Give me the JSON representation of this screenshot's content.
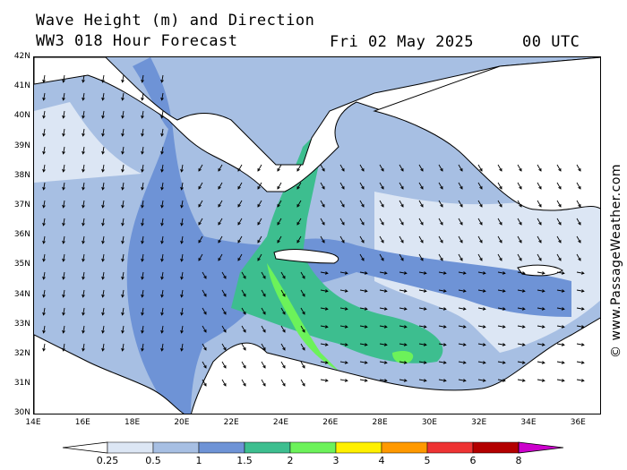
{
  "title": {
    "line1": "Wave Height (m) and Direction",
    "line2": "WW3 018 Hour Forecast",
    "date": "Fri 02 May 2025",
    "time": "00 UTC"
  },
  "credit": "© www.PassageWeather.com",
  "map": {
    "lat_ticks": [
      "42N",
      "41N",
      "40N",
      "39N",
      "38N",
      "37N",
      "36N",
      "35N",
      "34N",
      "33N",
      "32N",
      "31N",
      "30N"
    ],
    "lon_ticks": [
      "14E",
      "16E",
      "18E",
      "20E",
      "22E",
      "24E",
      "26E",
      "28E",
      "30E",
      "32E",
      "34E",
      "36E"
    ],
    "lat_range": [
      30,
      42
    ],
    "lon_range": [
      14,
      37
    ],
    "arrow_direction": "mostly south / south-west in the west, east in the south-east"
  },
  "legend": {
    "labels": [
      "0.25",
      "0.5",
      "1",
      "1.5",
      "2",
      "3",
      "4",
      "5",
      "6",
      "8"
    ],
    "colors": [
      "#ffffff",
      "#dce6f4",
      "#a7bfe3",
      "#6e93d6",
      "#3dbe8f",
      "#6cf25a",
      "#fff000",
      "#ff9900",
      "#ee3333",
      "#b30000",
      "#cc00cc"
    ]
  },
  "colors": {
    "land": "#ffffff",
    "sea_025": "#dce6f4",
    "sea_05": "#a7bfe3",
    "sea_1": "#6e93d6",
    "sea_15": "#3dbe8f",
    "sea_2": "#6cf25a"
  }
}
